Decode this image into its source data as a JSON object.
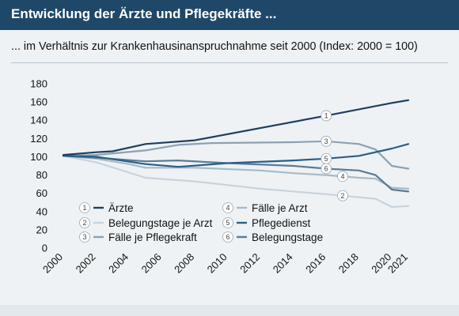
{
  "header": {
    "title": "Entwicklung der Ärzte und Pflegekräfte ...",
    "subtitle": "... im Verhältnis zur Krankenhausinanspruchnahme seit 2000 (Index: 2000 = 100)"
  },
  "chart_data": {
    "type": "line",
    "title": "Entwicklung der Ärzte und Pflegekräfte ...",
    "subtitle": "... im Verhältnis zur Krankenhausinanspruchnahme seit 2000 (Index: 2000 = 100)",
    "ylim": [
      0,
      180
    ],
    "yticks": [
      0,
      20,
      40,
      60,
      80,
      100,
      120,
      140,
      160,
      180
    ],
    "xticks": [
      "2000",
      "2002",
      "2004",
      "2006",
      "2008",
      "2010",
      "2012",
      "2014",
      "2016",
      "2018",
      "2020",
      "2021"
    ],
    "grid": false,
    "legend_position": "bottom-left",
    "series": [
      {
        "id": "1",
        "name": "Ärzte",
        "color": "#1f3f5e",
        "x": [
          2000,
          2002,
          2003,
          2005,
          2008,
          2016,
          2020,
          2021
        ],
        "y": [
          102,
          105,
          106,
          114,
          118,
          145,
          159,
          162
        ],
        "label_at": 2016
      },
      {
        "id": "2",
        "name": "Belegungstage je Arzt",
        "color": "#c9d3dd",
        "x": [
          2000,
          2002,
          2005,
          2008,
          2012,
          2016,
          2019,
          2020,
          2021
        ],
        "y": [
          101,
          94,
          77,
          73,
          65,
          59,
          54,
          45,
          46
        ],
        "label_at": 2017
      },
      {
        "id": "3",
        "name": "Fälle je Pflegekraft",
        "color": "#8ca1b3",
        "x": [
          2000,
          2002,
          2005,
          2007,
          2009,
          2014,
          2016,
          2018,
          2019,
          2020,
          2021
        ],
        "y": [
          101,
          102,
          107,
          113,
          115,
          116,
          117,
          114,
          108,
          90,
          87
        ],
        "label_at": 2016
      },
      {
        "id": "4",
        "name": "Fälle je Arzt",
        "color": "#a9b9c6",
        "x": [
          2000,
          2002,
          2004,
          2005,
          2008,
          2012,
          2014,
          2016,
          2018,
          2019,
          2020,
          2021
        ],
        "y": [
          101,
          98,
          92,
          88,
          88,
          85,
          82,
          80,
          77,
          76,
          66,
          65
        ],
        "label_at": 2017
      },
      {
        "id": "5",
        "name": "Pflegedienst",
        "color": "#2b5f86",
        "x": [
          2000,
          2002,
          2005,
          2007,
          2010,
          2014,
          2016,
          2018,
          2020,
          2021
        ],
        "y": [
          101,
          100,
          92,
          89,
          93,
          96,
          98,
          101,
          109,
          114
        ],
        "label_at": 2016
      },
      {
        "id": "6",
        "name": "Belegungstage",
        "color": "#5c7b94",
        "x": [
          2000,
          2002,
          2005,
          2007,
          2010,
          2014,
          2016,
          2018,
          2019,
          2020,
          2021
        ],
        "y": [
          101,
          99,
          95,
          96,
          93,
          90,
          87,
          85,
          80,
          64,
          62
        ],
        "label_at": 2016
      }
    ]
  },
  "legend": {
    "items": [
      {
        "num": "1",
        "label": "Ärzte",
        "color": "#1f3f5e"
      },
      {
        "num": "2",
        "label": "Belegungstage je Arzt",
        "color": "#c9d3dd"
      },
      {
        "num": "3",
        "label": "Fälle je Pflegekraft",
        "color": "#8ca1b3"
      },
      {
        "num": "4",
        "label": "Fälle je Arzt",
        "color": "#a9b9c6"
      },
      {
        "num": "5",
        "label": "Pflegedienst",
        "color": "#2b5f86"
      },
      {
        "num": "6",
        "label": "Belegungstage",
        "color": "#5c7b94"
      }
    ]
  }
}
